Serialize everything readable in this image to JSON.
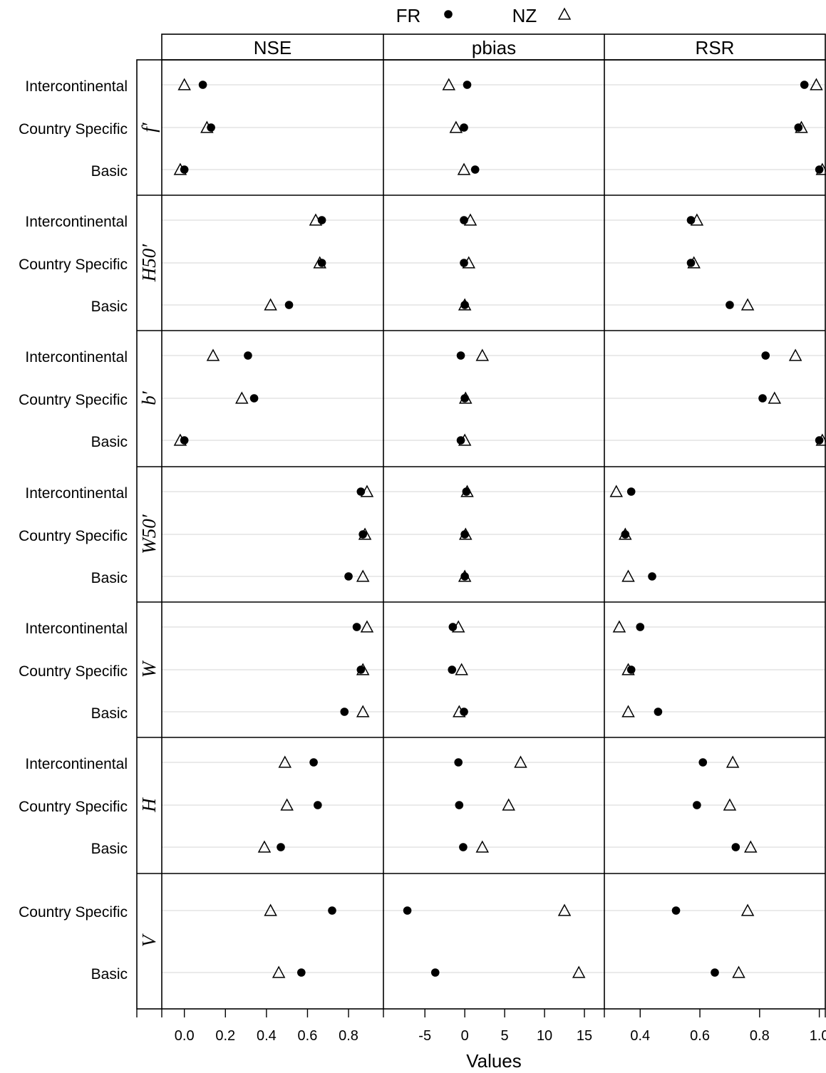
{
  "chart_data": {
    "type": "scatter",
    "legend": {
      "placement": "top-center",
      "entries": [
        {
          "name": "FR",
          "marker": "filled-circle"
        },
        {
          "name": "NZ",
          "marker": "open-triangle"
        }
      ]
    },
    "xlabel": "Values",
    "columns": [
      {
        "name": "NSE",
        "xlim": [
          -0.11,
          0.97
        ],
        "ticks": [
          0.0,
          0.2,
          0.4,
          0.6,
          0.8
        ],
        "tick_labels": [
          "0.0",
          "0.2",
          "0.4",
          "0.6",
          "0.8"
        ]
      },
      {
        "name": "pbias",
        "xlim": [
          -10.2,
          17.5
        ],
        "ticks": [
          -5,
          0,
          5,
          10,
          15
        ],
        "tick_labels": [
          "-5",
          "0",
          "5",
          "10",
          "15"
        ]
      },
      {
        "name": "RSR",
        "xlim": [
          0.28,
          1.02
        ],
        "ticks": [
          0.4,
          0.6,
          0.8,
          1.0
        ],
        "tick_labels": [
          "0.4",
          "0.6",
          "0.8",
          "1.0"
        ]
      }
    ],
    "rows": [
      {
        "facet": "f′",
        "categories": [
          "Intercontinental",
          "Country Specific",
          "Basic"
        ],
        "FR": [
          [
            0.09,
            0.13,
            0.0
          ],
          [
            0.3,
            -0.1,
            1.3
          ],
          [
            0.95,
            0.93,
            1.0
          ]
        ],
        "NZ": [
          [
            0.0,
            0.11,
            -0.02
          ],
          [
            -2.0,
            -1.1,
            -0.1
          ],
          [
            0.99,
            0.94,
            1.01
          ]
        ]
      },
      {
        "facet": "H50′",
        "categories": [
          "Intercontinental",
          "Country Specific",
          "Basic"
        ],
        "FR": [
          [
            0.67,
            0.67,
            0.51
          ],
          [
            -0.1,
            -0.1,
            0.0
          ],
          [
            0.57,
            0.57,
            0.7
          ]
        ],
        "NZ": [
          [
            0.64,
            0.66,
            0.42
          ],
          [
            0.7,
            0.5,
            0.0
          ],
          [
            0.59,
            0.58,
            0.76
          ]
        ]
      },
      {
        "facet": "b′",
        "categories": [
          "Intercontinental",
          "Country Specific",
          "Basic"
        ],
        "FR": [
          [
            0.31,
            0.34,
            0.0
          ],
          [
            -0.5,
            0.0,
            -0.5
          ],
          [
            0.82,
            0.81,
            1.0
          ]
        ],
        "NZ": [
          [
            0.14,
            0.28,
            -0.02
          ],
          [
            2.2,
            0.1,
            0.0
          ],
          [
            0.92,
            0.85,
            1.01
          ]
        ]
      },
      {
        "facet": "W50′",
        "categories": [
          "Intercontinental",
          "Country Specific",
          "Basic"
        ],
        "FR": [
          [
            0.86,
            0.87,
            0.8
          ],
          [
            0.2,
            0.0,
            0.0
          ],
          [
            0.37,
            0.35,
            0.44
          ]
        ],
        "NZ": [
          [
            0.89,
            0.88,
            0.87
          ],
          [
            0.3,
            0.1,
            0.0
          ],
          [
            0.32,
            0.35,
            0.36
          ]
        ]
      },
      {
        "facet": "W",
        "categories": [
          "Intercontinental",
          "Country Specific",
          "Basic"
        ],
        "FR": [
          [
            0.84,
            0.86,
            0.78
          ],
          [
            -1.5,
            -1.6,
            -0.1
          ],
          [
            0.4,
            0.37,
            0.46
          ]
        ],
        "NZ": [
          [
            0.89,
            0.87,
            0.87
          ],
          [
            -0.8,
            -0.4,
            -0.7
          ],
          [
            0.33,
            0.36,
            0.36
          ]
        ]
      },
      {
        "facet": "H",
        "categories": [
          "Intercontinental",
          "Country Specific",
          "Basic"
        ],
        "FR": [
          [
            0.63,
            0.65,
            0.47
          ],
          [
            -0.8,
            -0.7,
            -0.2
          ],
          [
            0.61,
            0.59,
            0.72
          ]
        ],
        "NZ": [
          [
            0.49,
            0.5,
            0.39
          ],
          [
            7.0,
            5.5,
            2.2
          ],
          [
            0.71,
            0.7,
            0.77
          ]
        ]
      },
      {
        "facet": "V",
        "categories": [
          "Country Specific",
          "Basic"
        ],
        "FR": [
          [
            0.72,
            0.57
          ],
          [
            -7.2,
            -3.7
          ],
          [
            0.52,
            0.65
          ]
        ],
        "NZ": [
          [
            0.42,
            0.46
          ],
          [
            12.5,
            14.3
          ],
          [
            0.76,
            0.73
          ]
        ]
      }
    ]
  }
}
